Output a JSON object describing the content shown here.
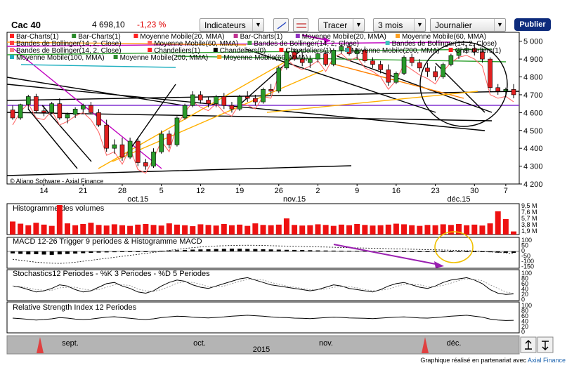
{
  "header": {
    "title": "Cac 40",
    "price": "4 698,10",
    "change": "-1,23 %",
    "indicators_label": "Indicateurs",
    "draw_label": "Tracer",
    "period_value": "3 mois",
    "interval_value": "Journalier",
    "publish_label": "Publier"
  },
  "legend": [
    {
      "label": "Bar-Charts(1)",
      "color": "#ff2020"
    },
    {
      "label": "Bar-Charts(1)",
      "color": "#2a8a2a"
    },
    {
      "label": "Moyenne Mobile(20, MMA)",
      "color": "#ff2020"
    },
    {
      "label": "Bar-Charts(1)",
      "color": "#c03090"
    },
    {
      "label": "Moyenne Mobile(20, MMA)",
      "color": "#9030c0"
    },
    {
      "label": "Moyenne Mobile(60, MMA)",
      "color": "#ffa020"
    },
    {
      "label": "Bandes de Bollinger(14, 2, Close)",
      "color": "#ff4040"
    },
    {
      "label": "Moyenne Mobile(60, MMA)",
      "color": "#ff6060"
    },
    {
      "label": "Bandes de Bollinger(14, 2, Close)",
      "color": "#40a040"
    },
    {
      "label": "Bandes de Bollinger(14, 2, Close)",
      "color": "#40c0c0"
    },
    {
      "label": "Bandes de Bollinger(14, 2, Close)",
      "color": "#ff8080"
    },
    {
      "label": "Chandeliers(1)",
      "color": "#ff2020"
    },
    {
      "label": "Chandeliers(0)",
      "color": "#000000"
    },
    {
      "label": "Chandeliers(1)",
      "color": "#ff2020"
    },
    {
      "label": "Moyenne Mobile(200, MMA)",
      "color": "#40a0a0"
    },
    {
      "label": "Chandeliers(1)",
      "color": "#ff2020"
    },
    {
      "label": "Moyenne Mobile(100, MMA)",
      "color": "#20b0c0"
    },
    {
      "label": "Moyenne Mobile(200, MMA)",
      "color": "#2a8a2a"
    },
    {
      "label": "Moyenne Mobile(60, MMA)",
      "color": "#ffa020"
    }
  ],
  "watermark": "© Aliano Software - Axial Finance",
  "panels": {
    "volume_title": "Histogramme des volumes",
    "macd_title": "MACD 12-26   Trigger 9 periodes & Histogramme MACD",
    "stoch_title": "Stochastics12 Periodes  -  %K 3 Periodes  -  %D 5 Periodes",
    "rsi_title": "Relative Strength Index 12 Periodes"
  },
  "credit": {
    "text": "Graphique réalisé en partenariat avec ",
    "brand": "Axial Finance"
  },
  "chart_data": {
    "type": "candlestick",
    "price_axis": {
      "ylim": [
        4200,
        5050
      ],
      "ticks": [
        "4 200",
        "4 300",
        "4 400",
        "4 500",
        "4 600",
        "4 700",
        "4 800",
        "4 900",
        "5 000"
      ]
    },
    "x_day_ticks": [
      "14",
      "21",
      "28",
      "5",
      "12",
      "19",
      "26",
      "2",
      "9",
      "16",
      "23",
      "30",
      "7"
    ],
    "x_month_labels": [
      "oct.15",
      "nov.15",
      "déc.15"
    ],
    "candles": [
      [
        4615,
        4640,
        4560,
        4570
      ],
      [
        4570,
        4650,
        4560,
        4645
      ],
      [
        4645,
        4700,
        4620,
        4690
      ],
      [
        4690,
        4705,
        4600,
        4610
      ],
      [
        4610,
        4640,
        4580,
        4600
      ],
      [
        4600,
        4660,
        4590,
        4650
      ],
      [
        4650,
        4680,
        4560,
        4570
      ],
      [
        4570,
        4600,
        4540,
        4590
      ],
      [
        4590,
        4630,
        4570,
        4620
      ],
      [
        4620,
        4650,
        4600,
        4640
      ],
      [
        4640,
        4660,
        4590,
        4600
      ],
      [
        4600,
        4620,
        4520,
        4530
      ],
      [
        4530,
        4560,
        4380,
        4400
      ],
      [
        4400,
        4450,
        4370,
        4420
      ],
      [
        4420,
        4460,
        4330,
        4350
      ],
      [
        4350,
        4460,
        4340,
        4440
      ],
      [
        4440,
        4460,
        4300,
        4320
      ],
      [
        4320,
        4340,
        4280,
        4300
      ],
      [
        4300,
        4400,
        4290,
        4380
      ],
      [
        4380,
        4500,
        4370,
        4480
      ],
      [
        4480,
        4500,
        4400,
        4420
      ],
      [
        4420,
        4580,
        4410,
        4570
      ],
      [
        4570,
        4650,
        4560,
        4640
      ],
      [
        4640,
        4720,
        4630,
        4700
      ],
      [
        4700,
        4720,
        4650,
        4670
      ],
      [
        4670,
        4690,
        4630,
        4650
      ],
      [
        4650,
        4700,
        4630,
        4690
      ],
      [
        4690,
        4710,
        4620,
        4640
      ],
      [
        4640,
        4660,
        4600,
        4620
      ],
      [
        4620,
        4700,
        4610,
        4690
      ],
      [
        4690,
        4720,
        4660,
        4680
      ],
      [
        4680,
        4700,
        4640,
        4660
      ],
      [
        4660,
        4740,
        4650,
        4730
      ],
      [
        4730,
        4760,
        4700,
        4720
      ],
      [
        4720,
        4860,
        4710,
        4850
      ],
      [
        4850,
        4960,
        4840,
        4940
      ],
      [
        4940,
        4960,
        4890,
        4900
      ],
      [
        4900,
        4940,
        4860,
        4880
      ],
      [
        4880,
        4920,
        4850,
        4900
      ],
      [
        4900,
        4950,
        4880,
        4930
      ],
      [
        4930,
        4950,
        4860,
        4870
      ],
      [
        4870,
        4960,
        4860,
        4950
      ],
      [
        4950,
        4990,
        4930,
        4970
      ],
      [
        4970,
        4990,
        4920,
        4930
      ],
      [
        4930,
        4960,
        4900,
        4950
      ],
      [
        4950,
        4970,
        4880,
        4890
      ],
      [
        4890,
        4910,
        4850,
        4870
      ],
      [
        4870,
        4890,
        4820,
        4840
      ],
      [
        4840,
        4870,
        4750,
        4770
      ],
      [
        4770,
        4830,
        4760,
        4820
      ],
      [
        4820,
        4920,
        4810,
        4910
      ],
      [
        4910,
        4930,
        4860,
        4880
      ],
      [
        4880,
        4900,
        4830,
        4850
      ],
      [
        4850,
        4880,
        4800,
        4830
      ],
      [
        4830,
        4860,
        4780,
        4800
      ],
      [
        4800,
        4880,
        4790,
        4870
      ],
      [
        4870,
        4930,
        4860,
        4920
      ],
      [
        4920,
        4960,
        4900,
        4950
      ],
      [
        4950,
        4980,
        4930,
        4960
      ],
      [
        4960,
        4990,
        4920,
        4940
      ],
      [
        4940,
        4960,
        4880,
        4900
      ],
      [
        4900,
        4910,
        4720,
        4740
      ],
      [
        4740,
        4760,
        4700,
        4720
      ],
      [
        4720,
        4740,
        4690,
        4730
      ],
      [
        4730,
        4760,
        4680,
        4700
      ]
    ],
    "volumes": [
      4.2,
      3.5,
      3.0,
      3.8,
      3.2,
      2.8,
      9.5,
      3.6,
      3.0,
      3.4,
      3.8,
      3.1,
      2.9,
      3.3,
      3.0,
      2.8,
      3.2,
      3.4,
      3.1,
      2.9,
      3.6,
      3.2,
      3.0,
      2.7,
      3.3,
      3.1,
      2.9,
      3.4,
      3.0,
      3.2,
      2.8,
      3.6,
      3.1,
      3.0,
      3.2,
      5.2,
      3.1,
      2.9,
      3.0,
      3.3,
      3.1,
      2.8,
      3.2,
      3.0,
      3.4,
      3.1,
      2.9,
      3.0,
      3.2,
      3.5,
      3.3,
      3.0,
      2.8,
      3.1,
      3.0,
      3.3,
      3.1,
      3.4,
      3.0,
      3.2,
      2.9,
      3.6,
      7.5,
      5.0,
      1.0
    ],
    "volume_axis_labels": [
      "9,5 M",
      "7,6 M",
      "5,7 M",
      "3,8 M",
      "1,9 M"
    ],
    "macd_axis_labels": [
      "100",
      "50",
      "0",
      "-50",
      "-100",
      "-150"
    ],
    "stoch_axis_labels": [
      "100",
      "80",
      "60",
      "40",
      "20",
      "0"
    ],
    "rsi_axis_labels": [
      "100",
      "80",
      "60",
      "40",
      "20",
      "0"
    ],
    "macd_hist": [
      -20,
      -25,
      -30,
      -28,
      -32,
      -35,
      -30,
      -26,
      -22,
      -18,
      -15,
      -12,
      -10,
      -8,
      -6,
      -4,
      -2,
      0,
      3,
      6,
      9,
      12,
      15,
      18,
      20,
      22,
      24,
      26,
      28,
      27,
      25,
      24,
      22,
      20,
      18,
      16,
      15,
      14,
      12,
      10,
      9,
      8,
      7,
      6,
      5,
      4,
      3,
      2,
      1,
      0,
      -1,
      -2,
      -3,
      -3,
      -2,
      -1,
      0,
      1,
      0,
      -2,
      -4,
      -8,
      -12,
      -14,
      -15
    ],
    "macd_line": [
      -80,
      -90,
      -100,
      -110,
      -115,
      -120,
      -122,
      -118,
      -110,
      -100,
      -90,
      -80,
      -70,
      -60,
      -50,
      -40,
      -30,
      -20,
      -10,
      0,
      10,
      20,
      30,
      38,
      45,
      50,
      55,
      58,
      60,
      62,
      63,
      62,
      60,
      58,
      56,
      54,
      52,
      50,
      48,
      46,
      44,
      42,
      40,
      38,
      36,
      34,
      32,
      30,
      28,
      26,
      24,
      22,
      20,
      18,
      16,
      14,
      12,
      10,
      8,
      5,
      0,
      -5,
      -10,
      -15,
      -20
    ],
    "stoch_k": [
      55,
      50,
      40,
      30,
      35,
      45,
      60,
      55,
      40,
      30,
      35,
      50,
      65,
      70,
      55,
      45,
      30,
      25,
      35,
      55,
      70,
      80,
      75,
      60,
      50,
      45,
      55,
      65,
      75,
      85,
      90,
      80,
      70,
      60,
      55,
      50,
      45,
      40,
      35,
      40,
      50,
      60,
      55,
      45,
      40,
      35,
      30,
      40,
      55,
      65,
      70,
      60,
      50,
      45,
      55,
      70,
      80,
      85,
      90,
      80,
      65,
      40,
      25,
      20,
      22
    ],
    "rsi": [
      50,
      48,
      45,
      42,
      44,
      47,
      52,
      50,
      46,
      44,
      46,
      50,
      54,
      56,
      52,
      49,
      46,
      44,
      47,
      52,
      55,
      58,
      57,
      54,
      52,
      51,
      53,
      55,
      58,
      60,
      62,
      60,
      58,
      55,
      53,
      52,
      50,
      49,
      48,
      50,
      52,
      54,
      53,
      51,
      50,
      49,
      48,
      50,
      52,
      54,
      55,
      53,
      51,
      50,
      52,
      55,
      58,
      60,
      62,
      58,
      54,
      46,
      42,
      40,
      41
    ],
    "month_axis": [
      "sept.",
      "oct.",
      "nov.",
      "déc."
    ],
    "year_label": "2015"
  }
}
